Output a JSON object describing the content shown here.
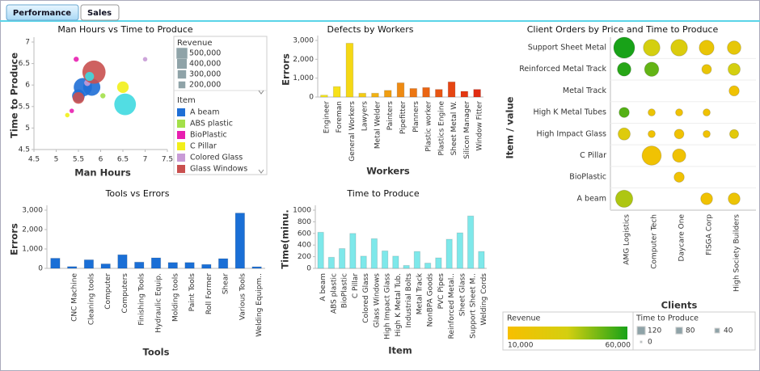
{
  "tabs": [
    "Performance",
    "Sales"
  ],
  "chart_data": [
    {
      "type": "scatter",
      "title": "Man Hours vs Time to Produce",
      "xlabel": "Man Hours",
      "ylabel": "Time to Produce",
      "xlim": [
        4.5,
        7.5
      ],
      "xticks": [
        4.5,
        5,
        5.5,
        6,
        6.5,
        7,
        7.5
      ],
      "ylim": [
        4.5,
        7
      ],
      "yticks": [
        4.5,
        5,
        5.5,
        6,
        6.5,
        7
      ],
      "grid": false,
      "size_legend": {
        "title": "Revenue",
        "ticks": [
          {
            "value": 500000,
            "label": "500,000"
          },
          {
            "value": 400000,
            "label": "400,000"
          },
          {
            "value": 300000,
            "label": "300,000"
          },
          {
            "value": 200000,
            "label": "200,000"
          }
        ]
      },
      "legend_title": "Item",
      "series": [
        {
          "name": "A beam",
          "color": "#1f6fd6",
          "x": [
            5.6,
            5.8,
            5.5
          ],
          "values": [
            5.95,
            5.95,
            5.75
          ],
          "sizes": [
            250000,
            220000,
            120000
          ]
        },
        {
          "name": "ABS plastic",
          "color": "#a3e04a",
          "x": [
            6.05
          ],
          "values": [
            5.75
          ],
          "sizes": [
            20000
          ]
        },
        {
          "name": "BioPlastic",
          "color": "#e81fb0",
          "x": [
            5.45,
            5.35
          ],
          "values": [
            6.6,
            5.4
          ],
          "sizes": [
            20000,
            15000
          ]
        },
        {
          "name": "C Pillar",
          "color": "#f2ef1a",
          "x": [
            6.5,
            5.25
          ],
          "values": [
            5.95,
            5.3
          ],
          "sizes": [
            100000,
            15000
          ]
        },
        {
          "name": "Colored Glass",
          "color": "#c89bd6",
          "x": [
            7,
            5.7
          ],
          "values": [
            6.6,
            6.05
          ],
          "sizes": [
            15000,
            30000
          ]
        },
        {
          "name": "Glass Windows",
          "color": "#c9504f",
          "x": [
            5.85,
            5.5
          ],
          "values": [
            6.3,
            5.7
          ],
          "sizes": [
            400000,
            100000
          ]
        },
        {
          "color": "#3fd9e0",
          "x": [
            6.55,
            5.75
          ],
          "values": [
            5.55,
            6.2
          ],
          "sizes": [
            350000,
            60000
          ]
        }
      ]
    },
    {
      "type": "bar",
      "title": "Defects by Workers",
      "xlabel": "Workers",
      "ylabel": "Errors",
      "categories": [
        "Engineer",
        "Foreman",
        "General Workers",
        "Lawyers",
        "Metal Welder",
        "Painters",
        "Pipefitter",
        "Planners",
        "Plastic worker",
        "Plastics Engine",
        "Sheet Metal W.",
        "Silicon Manager",
        "Window Fitter"
      ],
      "values": [
        100,
        550,
        2850,
        200,
        200,
        350,
        750,
        450,
        500,
        400,
        800,
        300,
        400
      ],
      "colors": [
        "#f7e81c",
        "#f7e11a",
        "#f5d815",
        "#f4cc14",
        "#f2b212",
        "#f09e12",
        "#ee8a12",
        "#ec7612",
        "#ea6412",
        "#e85512",
        "#e64512",
        "#e43812",
        "#e22c12"
      ],
      "ylim": [
        0,
        3000
      ],
      "yticks": [
        0,
        {
          "value": 1000,
          "label": "1,000"
        },
        {
          "value": 2000,
          "label": "2,000"
        },
        {
          "value": 3000,
          "label": "3,000"
        }
      ],
      "grid": false
    },
    {
      "type": "bubble_matrix",
      "title": "Client Orders by Price and Time to Produce",
      "xlabel": "Clients",
      "ylabel": "Item / value",
      "categories": [
        "AMG Logistics",
        "Computer Tech",
        "Daycare One",
        "FISGA Corp",
        "High Society Builders"
      ],
      "colorscale": [
        "#f7bf00",
        "#d4cf10",
        "#18a218"
      ],
      "color_legend": {
        "title": "Revenue",
        "ticks": [
          {
            "value": 10000,
            "label": "10,000"
          },
          {
            "value": 60000,
            "label": "60,000"
          }
        ]
      },
      "size_legend": {
        "title": "Time to Produce",
        "ticks": [
          120,
          80,
          40,
          0
        ]
      },
      "series": [
        {
          "name": "Support Sheet Metal",
          "values": [
            120,
            75,
            75,
            60,
            50
          ],
          "revenue": [
            60000,
            35000,
            30000,
            20000,
            22000
          ]
        },
        {
          "name": "Reinforced Metal Track",
          "values": [
            50,
            55,
            null,
            25,
            40
          ],
          "revenue": [
            58000,
            50000,
            null,
            20000,
            35000
          ]
        },
        {
          "name": "Metal Track",
          "values": [
            null,
            null,
            null,
            null,
            28
          ],
          "revenue": [
            null,
            null,
            null,
            null,
            15000
          ]
        },
        {
          "name": "High K Metal Tubes",
          "values": [
            28,
            14,
            14,
            14,
            null
          ],
          "revenue": [
            52000,
            18000,
            15000,
            15000,
            null
          ]
        },
        {
          "name": "High Impact Glass",
          "values": [
            40,
            14,
            25,
            14,
            22
          ],
          "revenue": [
            28000,
            15000,
            15000,
            15000,
            25000
          ]
        },
        {
          "name": "C Pillar",
          "values": [
            null,
            100,
            48,
            null,
            null
          ],
          "revenue": [
            null,
            15000,
            15000,
            null,
            null
          ]
        },
        {
          "name": "BioPlastic",
          "values": [
            null,
            null,
            28,
            null,
            null
          ],
          "revenue": [
            null,
            null,
            15000,
            null,
            null
          ]
        },
        {
          "name": "A beam",
          "values": [
            80,
            null,
            null,
            38,
            38
          ],
          "revenue": [
            40000,
            null,
            null,
            15000,
            18000
          ]
        }
      ]
    },
    {
      "type": "bar",
      "title": "Tools vs Errors",
      "xlabel": "Tools",
      "ylabel": "Errors",
      "categories": [
        null,
        "CNC Machine",
        "Cleaning tools",
        "Computer",
        "Computers",
        "Finishing Tools",
        "Hydraulic Equip.",
        "Molding tools",
        "Paint Tools",
        "Roll Former",
        "Shear",
        "Various Tools",
        "Welding Equipm.."
      ],
      "values": [
        520,
        90,
        440,
        230,
        700,
        320,
        540,
        300,
        300,
        200,
        500,
        2850,
        80
      ],
      "color": "#1a6fd6",
      "ylim": [
        0,
        3000
      ],
      "yticks": [
        0,
        {
          "value": 1000,
          "label": "1,000"
        },
        {
          "value": 2000,
          "label": "2,000"
        },
        {
          "value": 3000,
          "label": "3,000"
        }
      ],
      "grid": false
    },
    {
      "type": "bar",
      "title": "Time to Produce",
      "xlabel": "Item",
      "ylabel": "Time(minu.",
      "categories": [
        "A beam",
        "ABS plastic",
        "BioPlastic",
        "C Pillar",
        "Colored Glass",
        "Glass Windows",
        "High Impact Glass",
        "High K Metal Tub.",
        "Industrial Bolts",
        "Metal Track",
        "NonBPA Goods",
        "PVC Pipes",
        "Reinforced Metal..",
        "Sheet Glass",
        "Support Sheet M..",
        "Welding Cords"
      ],
      "values": [
        620,
        190,
        340,
        600,
        210,
        510,
        300,
        210,
        50,
        290,
        90,
        180,
        500,
        610,
        900,
        290
      ],
      "color": "#7ee8ea",
      "ylim": [
        0,
        1000
      ],
      "yticks": [
        0,
        200,
        400,
        600,
        800,
        1000
      ],
      "grid": false
    }
  ]
}
